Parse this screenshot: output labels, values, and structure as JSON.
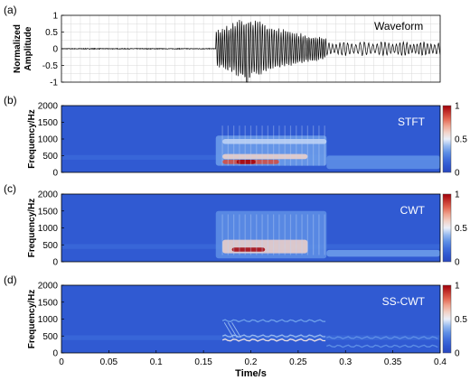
{
  "chart_data": [
    {
      "panel": "(a)",
      "type": "line",
      "ylabel": "Normalized\nAmplitude",
      "annotation": "Waveform",
      "xlim": [
        0,
        0.4
      ],
      "ylim": [
        -1,
        1
      ],
      "y_ticks": [
        "1",
        "0.5",
        "0",
        "-0.5",
        "-1"
      ],
      "grid": true,
      "signal": {
        "onset_s": 0.163,
        "peak_time_s": 0.196,
        "peak_amplitude": -1.0,
        "max_positive": 1.0,
        "end_s": 0.4,
        "pre_event_amplitude": 0.01
      }
    },
    {
      "panel": "(b)",
      "type": "heatmap",
      "annotation": "STFT",
      "ylabel": "Frequency/Hz",
      "xlim": [
        0,
        0.4
      ],
      "ylim": [
        0,
        2000
      ],
      "y_ticks": [
        "2000",
        "1500",
        "1000",
        "500",
        "0"
      ],
      "colorbar": {
        "range": [
          0,
          1
        ],
        "ticks": [
          "1",
          "0.5",
          "0"
        ]
      },
      "energy": [
        {
          "t": [
            0.163,
            0.28
          ],
          "f": [
            200,
            1100
          ],
          "level": 0.35
        },
        {
          "t": [
            0.17,
            0.28
          ],
          "f": [
            850,
            1000
          ],
          "level": 0.45
        },
        {
          "t": [
            0.17,
            0.26
          ],
          "f": [
            400,
            550
          ],
          "level": 0.6
        },
        {
          "t": [
            0.17,
            0.23
          ],
          "f": [
            250,
            380
          ],
          "level": 0.85
        },
        {
          "t": [
            0.185,
            0.205
          ],
          "f": [
            250,
            380
          ],
          "level": 1.0
        },
        {
          "t": [
            0.28,
            0.4
          ],
          "f": [
            100,
            500
          ],
          "level": 0.3
        }
      ]
    },
    {
      "panel": "(c)",
      "type": "heatmap",
      "annotation": "CWT",
      "ylabel": "Frequency/Hz",
      "xlim": [
        0,
        0.4
      ],
      "ylim": [
        0,
        2000
      ],
      "y_ticks": [
        "2000",
        "1500",
        "1000",
        "500",
        "0"
      ],
      "colorbar": {
        "range": [
          0,
          1
        ],
        "ticks": [
          "1",
          "0.5",
          "0"
        ]
      },
      "energy": [
        {
          "t": [
            0.163,
            0.28
          ],
          "f": [
            100,
            1500
          ],
          "level": 0.3
        },
        {
          "t": [
            0.17,
            0.26
          ],
          "f": [
            250,
            650
          ],
          "level": 0.6
        },
        {
          "t": [
            0.18,
            0.215
          ],
          "f": [
            300,
            420
          ],
          "level": 1.0
        },
        {
          "t": [
            0.28,
            0.4
          ],
          "f": [
            150,
            350
          ],
          "level": 0.35
        }
      ]
    },
    {
      "panel": "(d)",
      "type": "heatmap",
      "annotation": "SS-CWT",
      "ylabel": "Frequency/Hz",
      "xlabel": "Time/s",
      "xlim": [
        0,
        0.4
      ],
      "ylim": [
        0,
        2000
      ],
      "y_ticks": [
        "2000",
        "1500",
        "1000",
        "500",
        "0"
      ],
      "x_ticks": [
        "0",
        "0.05",
        "0.1",
        "0.15",
        "0.2",
        "0.25",
        "0.3",
        "0.35",
        "0.4"
      ],
      "colorbar": {
        "range": [
          0,
          1
        ],
        "ticks": [
          "1",
          "0.5",
          "0"
        ]
      },
      "ridges": [
        {
          "t": [
            0.17,
            0.28
          ],
          "f": 380,
          "level": 0.55
        },
        {
          "t": [
            0.17,
            0.28
          ],
          "f": 500,
          "level": 0.4
        },
        {
          "t": [
            0.17,
            0.28
          ],
          "f": 950,
          "level": 0.35
        },
        {
          "t": [
            0.28,
            0.4
          ],
          "f": 200,
          "level": 0.3
        },
        {
          "t": [
            0.28,
            0.4
          ],
          "f": 450,
          "level": 0.3
        }
      ]
    }
  ]
}
